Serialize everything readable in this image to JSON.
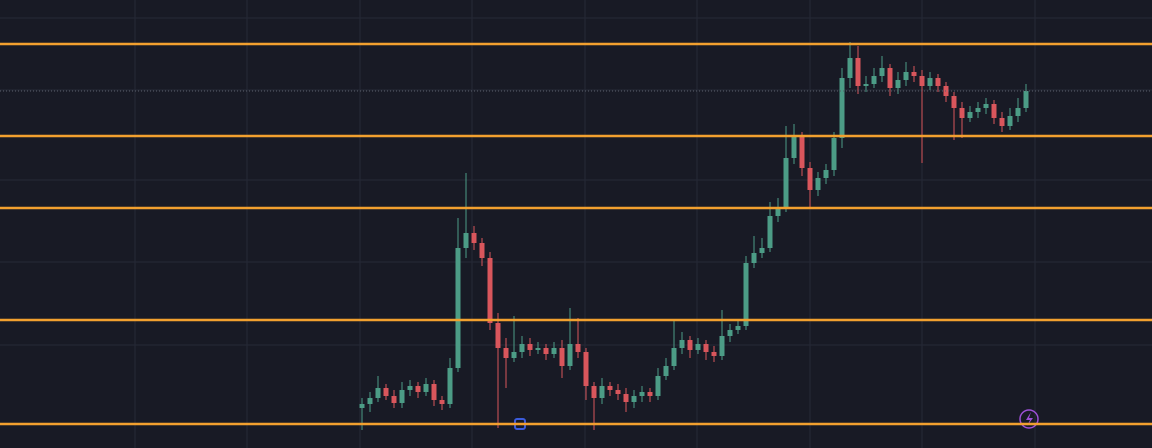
{
  "chart_data": {
    "type": "candlestick",
    "open": [
      40,
      44,
      50,
      60,
      52,
      45,
      58,
      62,
      56,
      64,
      48,
      44,
      80,
      200,
      215,
      205,
      190,
      125,
      100,
      90,
      96,
      104,
      98,
      100,
      94,
      100,
      82,
      104,
      96,
      62,
      50,
      62,
      58,
      54,
      46,
      52,
      56,
      52,
      72,
      82,
      100,
      108,
      98,
      104,
      96,
      92,
      112,
      118,
      122,
      185,
      195,
      200,
      232,
      240,
      290,
      312,
      280,
      258,
      270,
      278,
      310,
      370,
      390,
      362,
      364,
      372,
      380,
      360,
      368,
      376,
      372,
      362,
      370,
      362,
      352,
      340,
      330,
      336,
      340,
      344,
      330,
      322,
      332,
      340
    ],
    "high": [
      50,
      56,
      72,
      64,
      58,
      66,
      68,
      66,
      70,
      68,
      52,
      90,
      230,
      275,
      222,
      210,
      196,
      135,
      110,
      132,
      112,
      110,
      106,
      104,
      106,
      108,
      140,
      130,
      100,
      66,
      70,
      66,
      64,
      60,
      58,
      62,
      60,
      80,
      90,
      128,
      116,
      112,
      110,
      108,
      102,
      138,
      124,
      128,
      192,
      212,
      210,
      246,
      250,
      322,
      324,
      316,
      286,
      276,
      284,
      316,
      380,
      406,
      402,
      372,
      380,
      392,
      384,
      376,
      386,
      382,
      378,
      376,
      374,
      366,
      356,
      346,
      342,
      346,
      350,
      348,
      336,
      340,
      350,
      364
    ],
    "low": [
      18,
      36,
      46,
      48,
      40,
      40,
      52,
      50,
      52,
      42,
      38,
      40,
      76,
      190,
      198,
      182,
      118,
      20,
      60,
      86,
      90,
      92,
      94,
      88,
      90,
      70,
      78,
      90,
      48,
      18,
      44,
      52,
      48,
      36,
      40,
      46,
      46,
      48,
      68,
      78,
      94,
      90,
      94,
      88,
      86,
      88,
      106,
      114,
      118,
      180,
      190,
      196,
      226,
      236,
      284,
      272,
      240,
      252,
      264,
      272,
      300,
      360,
      354,
      356,
      360,
      366,
      352,
      354,
      362,
      366,
      285,
      358,
      356,
      346,
      308,
      310,
      326,
      330,
      334,
      324,
      316,
      318,
      326,
      336
    ],
    "close": [
      44,
      50,
      60,
      52,
      45,
      58,
      62,
      56,
      64,
      48,
      44,
      80,
      200,
      215,
      205,
      190,
      125,
      100,
      90,
      96,
      104,
      98,
      100,
      94,
      100,
      82,
      104,
      96,
      62,
      50,
      62,
      58,
      54,
      46,
      52,
      56,
      52,
      72,
      82,
      100,
      108,
      98,
      104,
      96,
      92,
      112,
      118,
      122,
      185,
      195,
      200,
      232,
      240,
      290,
      312,
      280,
      258,
      270,
      278,
      310,
      370,
      390,
      362,
      364,
      372,
      380,
      360,
      368,
      376,
      372,
      362,
      370,
      362,
      352,
      340,
      330,
      336,
      340,
      344,
      330,
      322,
      332,
      340,
      357
    ],
    "up_color": "#4c9c86",
    "down_color": "#d9565c",
    "levels": [
      404,
      312,
      240,
      128,
      24
    ],
    "level_color": "#f2a02f",
    "price_line": true,
    "ylim": [
      0,
      448
    ]
  }
}
